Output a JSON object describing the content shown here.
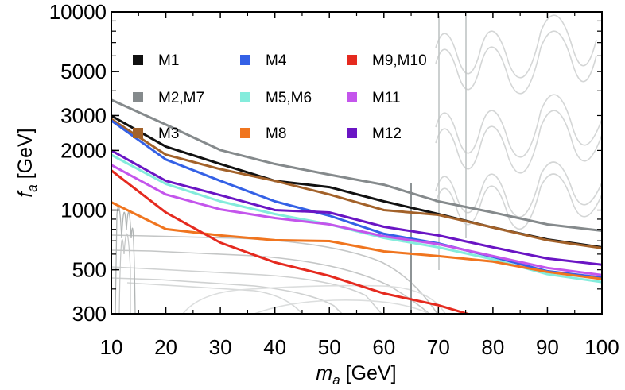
{
  "chart_data": {
    "type": "line",
    "title": "",
    "xlabel": {
      "main": "m",
      "sub": "a",
      "unit": " [GeV]"
    },
    "ylabel": {
      "main": "f",
      "sub": "a",
      "unit": " [GeV]"
    },
    "xlim": [
      10,
      100
    ],
    "ylim": [
      300,
      10000
    ],
    "yscale": "log",
    "xticks": [
      10,
      20,
      30,
      40,
      50,
      60,
      70,
      80,
      90,
      100
    ],
    "xtick_labels": [
      "10",
      "20",
      "30",
      "40",
      "50",
      "60",
      "70",
      "80",
      "90",
      "100"
    ],
    "yticks": [
      300,
      500,
      1000,
      2000,
      3000,
      5000,
      10000
    ],
    "ytick_labels": [
      "300",
      "500",
      "1000",
      "2000",
      "3000",
      "5000",
      "10000"
    ],
    "legend_placement": "top-left, inside, 3 columns",
    "series": [
      {
        "name": "M1",
        "color": "#111111",
        "x": [
          10,
          20,
          30,
          40,
          50,
          60,
          70,
          80,
          90,
          100
        ],
        "y": [
          2990,
          2090,
          1710,
          1405,
          1306,
          1107,
          955,
          817,
          711,
          649
        ]
      },
      {
        "name": "M2,M7",
        "color": "#858a8c",
        "x": [
          10,
          20,
          30,
          40,
          50,
          60,
          70,
          80,
          90,
          100
        ],
        "y": [
          3600,
          2700,
          2010,
          1710,
          1510,
          1343,
          1107,
          973,
          847,
          787
        ]
      },
      {
        "name": "M3",
        "color": "#a3622a",
        "x": [
          10,
          20,
          30,
          40,
          50,
          60,
          70,
          80,
          90,
          100
        ],
        "y": [
          2880,
          1905,
          1610,
          1405,
          1200,
          1000,
          946,
          817,
          705,
          643
        ]
      },
      {
        "name": "M4",
        "color": "#3461e6",
        "x": [
          10,
          20,
          30,
          40,
          50,
          60,
          70,
          80,
          90,
          100
        ],
        "y": [
          2830,
          1800,
          1405,
          1107,
          938,
          759,
          679,
          581,
          492,
          457
        ]
      },
      {
        "name": "M5,M6",
        "color": "#84ecdc",
        "x": [
          10,
          20,
          30,
          40,
          50,
          60,
          70,
          80,
          90,
          100
        ],
        "y": [
          1900,
          1355,
          1107,
          955,
          847,
          724,
          649,
          565,
          475,
          433
        ]
      },
      {
        "name": "M8",
        "color": "#f0751f",
        "x": [
          10,
          20,
          30,
          40,
          50,
          60,
          70,
          80,
          90,
          100
        ],
        "y": [
          1096,
          802,
          745,
          705,
          698,
          619,
          586,
          550,
          488,
          449
        ]
      },
      {
        "name": "M9,M10",
        "color": "#e52a1f",
        "x": [
          10,
          20,
          30,
          40,
          50,
          60,
          70,
          76,
          80
        ],
        "y": [
          1585,
          973,
          685,
          545,
          466,
          380,
          331,
          296,
          275
        ]
      },
      {
        "name": "M11",
        "color": "#c455ec",
        "x": [
          10,
          20,
          30,
          40,
          50,
          60,
          70,
          80,
          90,
          100
        ],
        "y": [
          1690,
          1200,
          1009,
          912,
          847,
          738,
          673,
          586,
          511,
          470
        ]
      },
      {
        "name": "M12",
        "color": "#6a15c4",
        "x": [
          10,
          20,
          30,
          40,
          50,
          60,
          70,
          80,
          90,
          100
        ],
        "y": [
          2000,
          1405,
          1190,
          1000,
          973,
          824,
          745,
          649,
          570,
          530
        ]
      }
    ],
    "legend_order": [
      0,
      1,
      2,
      3,
      4,
      5,
      6,
      7,
      8
    ]
  }
}
